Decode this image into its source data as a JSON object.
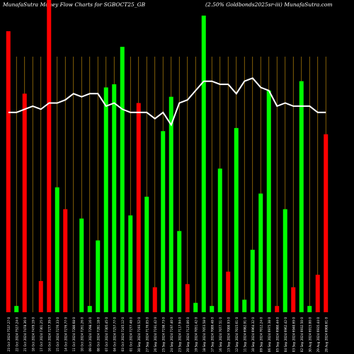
{
  "header": {
    "left_title": "MunafaSutra  Money Flow  Charts for SGBOCT25_GB",
    "right_title": "(2.50% Goldbonds2025sr-iii) MunafaSutra.com"
  },
  "colors": {
    "background": "#000000",
    "grid": "#b8860b",
    "up": "#00ff00",
    "down": "#ff0000",
    "line": "#ffffff"
  },
  "chart_data": {
    "type": "bar",
    "title": "MunafaSutra  Money Flow  Charts for SGBOCT25_GB",
    "subtitle": "(2.50% Goldbonds2025sr-iii) MunafaSutra.com",
    "xlabel": "",
    "ylabel": "",
    "grid": true,
    "y_axis_labels": false,
    "categories": [
      "23 Oct 2024 7537.27 0",
      "22 Oct 2024 7527.24 0",
      "21 Oct 2024 7478.36 0",
      "18 Oct 2024 7479.19 0",
      "17 Oct 2024 7301.25 0",
      "16 Oct 2024 7277.39 0",
      "15 Oct 2024 7276.33 0",
      "14 Oct 2024 7276.77 0",
      "11 Oct 2024 7280.68 0",
      "10 Oct 2024 7261.26 0",
      "09 Oct 2024 7298.16 0",
      "08 Oct 2024 7281.18 0",
      "07 Oct 2024 7305.45 0",
      "04 Oct 2024 7257.77 0",
      "03 Oct 2024 7245.12 0",
      "01 Oct 2024 7277.48 0",
      "30 Sep 2024 7193.52 0",
      "27 Sep 2024 7176.05 0",
      "26 Sep 2024 7191.42 0",
      "25 Sep 2024 7198.73 0",
      "24 Sep 2024 7197.40 0",
      "23 Sep 2024 7117.94 0",
      "20 Sep 2024 7125.06 0",
      "19 Sep 2024 7051.42 0",
      "18 Sep 2024 7053.58 0",
      "17 Sep 2024 7089.48 0",
      "16 Sep 2024 7077.51 0",
      "13 Sep 2024 7000.93 0",
      "12 Sep 2024 7015.61 0",
      "11 Sep 2024 6982.91 0",
      "10 Sep 2024 6964.32 0",
      "09 Sep 2024 7012.24 0",
      "06 Sep 2024 6975.38 0",
      "05 Sep 2024 6980.44 0",
      "04 Sep 2024 6962.42 0",
      "03 Sep 2024 6940.69 0",
      "02 Sep 2024 6932.50 0",
      "30 Aug 2024 6915.00 0",
      "29 Aug 2024 6935.44 0",
      "28 Aug 2024 6908.61 0"
    ],
    "colors": [
      "down",
      "up",
      "down",
      "up",
      "down",
      "down",
      "up",
      "down",
      "down",
      "up",
      "up",
      "up",
      "up",
      "up",
      "up",
      "up",
      "down",
      "up",
      "down",
      "up",
      "up",
      "up",
      "down",
      "up",
      "up",
      "up",
      "up",
      "down",
      "up",
      "up",
      "up",
      "up",
      "up",
      "down",
      "up",
      "down",
      "up",
      "up",
      "down",
      "down"
    ],
    "values": [
      90,
      2,
      70,
      0,
      10,
      100,
      40,
      33,
      0,
      30,
      2,
      23,
      72,
      73,
      85,
      31,
      67,
      37,
      8,
      58,
      69,
      26,
      9,
      3,
      95,
      2,
      46,
      13,
      59,
      4,
      20,
      38,
      71,
      2,
      33,
      8,
      74,
      2,
      12,
      57
    ],
    "money_flow_line": [
      64,
      64,
      65,
      66,
      65,
      67,
      67,
      68,
      70,
      69,
      70,
      70,
      66,
      67,
      65,
      64,
      64,
      64,
      62,
      64,
      60,
      67,
      68,
      71,
      74,
      74,
      73,
      73,
      70,
      74,
      75,
      72,
      71,
      66,
      67,
      66,
      66,
      66,
      64,
      64
    ]
  }
}
